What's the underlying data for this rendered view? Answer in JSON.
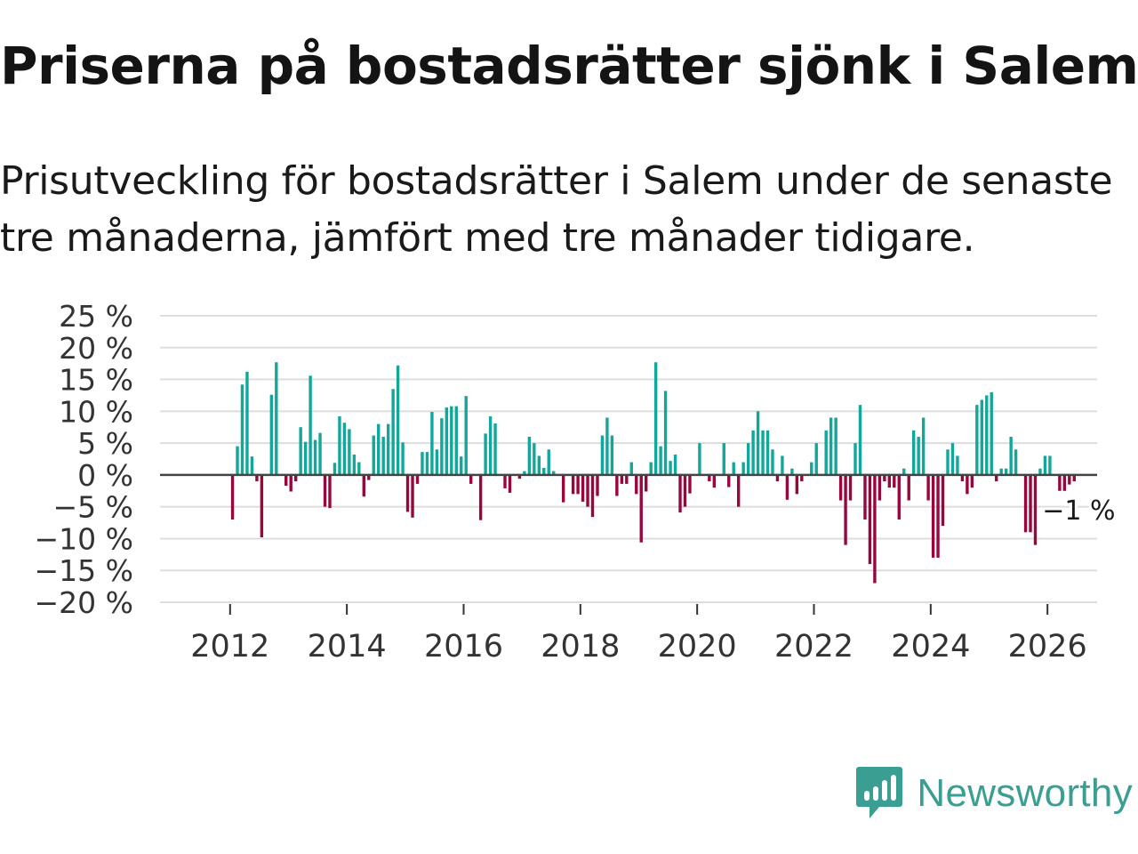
{
  "header": {
    "title": "Priserna på bostadsrätter sjönk i Salem",
    "subtitle": "Prisutveckling för bostadsrätter i Salem under de senaste tre månaderna, jämfört med tre månader tidigare."
  },
  "brand": {
    "name": "Newsworthy",
    "color": "#3a9e93"
  },
  "colors": {
    "positive": "#11a79a",
    "negative": "#97073e",
    "grid": "#dddddd",
    "zero": "#444444"
  },
  "chart_data": {
    "type": "bar",
    "title": "Priserna på bostadsrätter sjönk i Salem",
    "xlabel": "",
    "ylabel": "",
    "ylim": [
      -20,
      25
    ],
    "xlim": [
      2010.8,
      2026.85
    ],
    "y_ticks": [
      25,
      20,
      15,
      10,
      5,
      0,
      -5,
      -10,
      -15,
      -20
    ],
    "y_tick_labels": [
      "25 %",
      "20 %",
      "15 %",
      "10 %",
      "5 %",
      "0 %",
      "−5 %",
      "−10 %",
      "−15 %",
      "−20 %"
    ],
    "x_ticks": [
      2012,
      2014,
      2016,
      2018,
      2020,
      2022,
      2024,
      2026
    ],
    "x_tick_labels": [
      "2012",
      "2014",
      "2016",
      "2018",
      "2020",
      "2022",
      "2024",
      "2026"
    ],
    "start_year": 2012,
    "last_value_label": "−1 %",
    "values": [
      -7,
      4.5,
      14.2,
      16.2,
      2.9,
      -1,
      -9.8,
      0,
      12.6,
      17.7,
      0,
      -1.7,
      -2.6,
      -1,
      7.5,
      5.2,
      15.6,
      5.5,
      6.6,
      -5,
      -5.2,
      1.9,
      9.2,
      8.2,
      7.2,
      3.2,
      2,
      -3.4,
      -0.8,
      6.2,
      8,
      6,
      8,
      13.5,
      17.2,
      5.1,
      -5.8,
      -6.7,
      -1.4,
      3.6,
      3.6,
      9.9,
      4,
      8.9,
      10.6,
      10.8,
      10.8,
      2.9,
      12.4,
      -1.4,
      0,
      -7.1,
      6.5,
      9.2,
      8.1,
      0,
      -2.1,
      -2.8,
      0,
      -0.6,
      0.6,
      6,
      5,
      3,
      1.1,
      4,
      0.6,
      0,
      -4.3,
      0,
      -3,
      -3,
      -4.2,
      -5,
      -6.6,
      -3.3,
      6.2,
      9,
      6.2,
      -3.3,
      -1.4,
      -1.4,
      2,
      -3,
      -10.6,
      -2.6,
      2,
      17.7,
      4.5,
      13.2,
      2.2,
      3.2,
      -5.9,
      -5,
      -2.9,
      0,
      5,
      0,
      -1,
      -2,
      0,
      5,
      -1.9,
      2,
      -5,
      2,
      5,
      7,
      10,
      7,
      7,
      4,
      -1,
      3,
      -3.9,
      1,
      -3,
      -1,
      0,
      2,
      5,
      0,
      7,
      9,
      9,
      -4,
      -11,
      -4,
      5,
      11,
      -7,
      -14,
      -17,
      -4,
      -1,
      -2,
      -2,
      -7,
      1,
      -4,
      7,
      6,
      9,
      -4,
      -13,
      -13,
      -8,
      4,
      5,
      3,
      -1,
      -3,
      -2,
      11,
      11.8,
      12.5,
      13,
      -1,
      1,
      1,
      6,
      4,
      0,
      -9,
      -9,
      -11,
      1,
      3,
      3,
      0,
      -2.5,
      -2.5,
      -1.5,
      -1
    ]
  }
}
